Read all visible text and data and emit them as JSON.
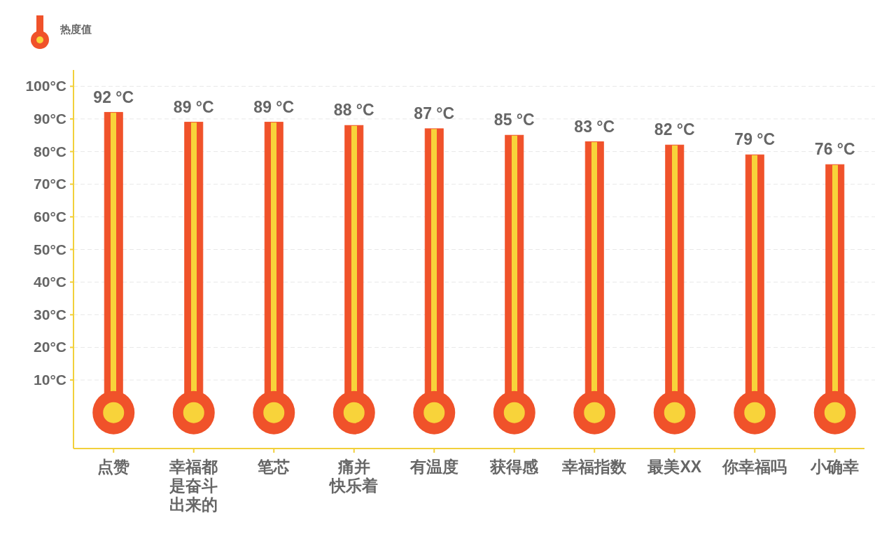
{
  "chart_data": {
    "type": "bar",
    "categories": [
      "点赞",
      "幸福都是奋斗出来的",
      "笔芯",
      "痛并快乐着",
      "有温度",
      "获得感",
      "幸福指数",
      "最美XX",
      "你幸福吗",
      "小确幸"
    ],
    "series": [
      {
        "name": "热度值",
        "color": "#f0522a",
        "values": [
          92,
          89,
          89,
          88,
          87,
          85,
          83,
          82,
          79,
          76
        ],
        "value_labels": [
          "92 °C",
          "89 °C",
          "89 °C",
          "88 °C",
          "87 °C",
          "85 °C",
          "83 °C",
          "82 °C",
          "79 °C",
          "76 °C"
        ]
      }
    ],
    "ylim": [
      -11,
      105
    ],
    "yticks": [
      {
        "value": 10,
        "label": "10°C"
      },
      {
        "value": 20,
        "label": "20°C"
      },
      {
        "value": 30,
        "label": "30°C"
      },
      {
        "value": 40,
        "label": "40°C"
      },
      {
        "value": 50,
        "label": "50°C"
      },
      {
        "value": 60,
        "label": "60°C"
      },
      {
        "value": 70,
        "label": "70°C"
      },
      {
        "value": 80,
        "label": "80°C"
      },
      {
        "value": 90,
        "label": "90°C"
      },
      {
        "value": 100,
        "label": "100°C"
      }
    ],
    "grid": "y",
    "legend": "top left"
  }
}
